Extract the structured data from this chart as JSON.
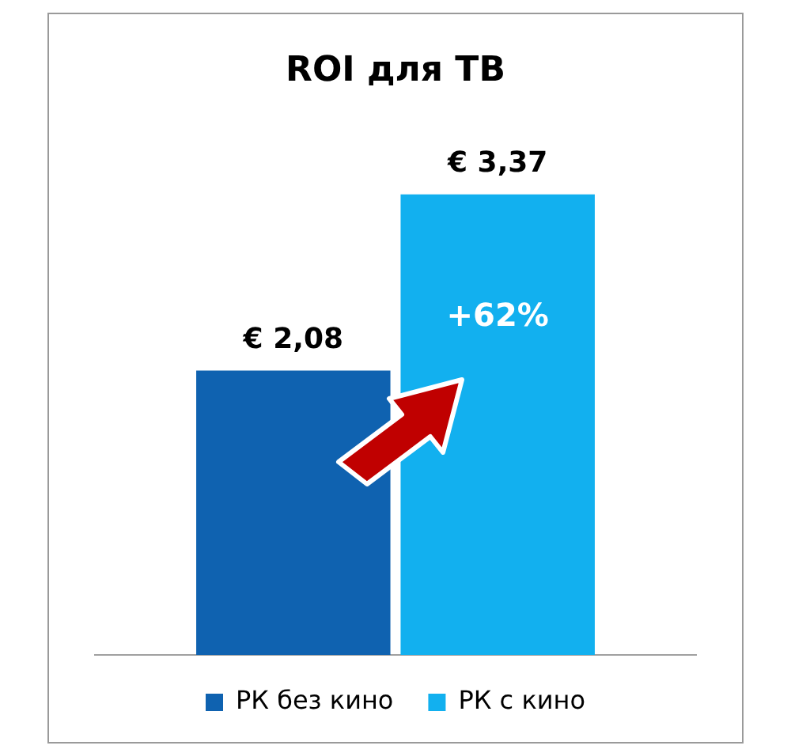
{
  "chart_data": {
    "type": "bar",
    "title": "ROI для ТВ",
    "categories": [
      null
    ],
    "series": [
      {
        "name": "РК без кино",
        "color": "#0f62b0",
        "values": [
          2.08
        ],
        "value_labels": [
          "€ 2,08"
        ]
      },
      {
        "name": "РК с кино",
        "color": "#12b0ef",
        "values": [
          3.37
        ],
        "value_labels": [
          "€ 3,37"
        ]
      }
    ],
    "annotations": [
      "+62%"
    ],
    "legend": "bottom",
    "grid": false
  }
}
